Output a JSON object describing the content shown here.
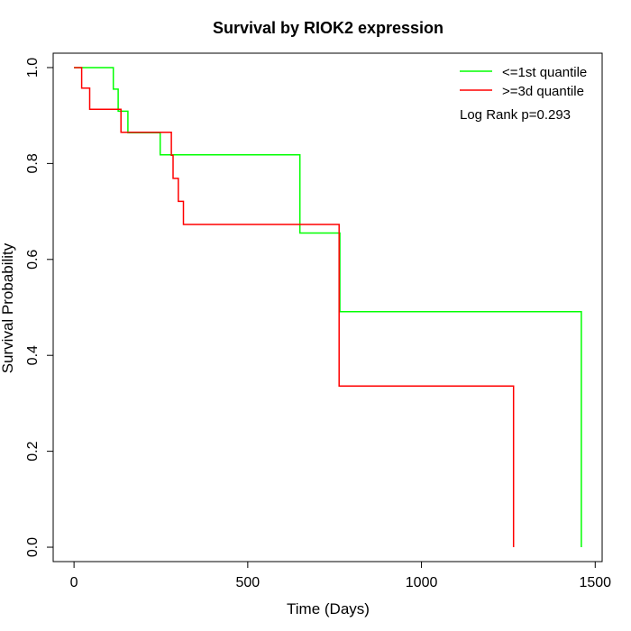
{
  "chart_data": {
    "type": "line",
    "title": "Survival by RIOK2 expression",
    "xlabel": "Time (Days)",
    "ylabel": "Survival Probability",
    "xlim": [
      -60,
      1520
    ],
    "ylim": [
      -0.03,
      1.03
    ],
    "x_ticks": [
      0,
      500,
      1000,
      1500
    ],
    "y_ticks": [
      0.0,
      0.2,
      0.4,
      0.6,
      0.8,
      1.0
    ],
    "x_tick_labels": [
      "0",
      "500",
      "1000",
      "1500"
    ],
    "y_tick_labels": [
      "0.0",
      "0.2",
      "0.4",
      "0.6",
      "0.8",
      "1.0"
    ],
    "grid": false,
    "legend_position": "top-right",
    "annotation": "Log Rank p=0.293",
    "series": [
      {
        "name": "<=1st quantile",
        "color": "#00ff00",
        "step_points": [
          [
            0,
            1.0
          ],
          [
            113,
            1.0
          ],
          [
            113,
            0.955
          ],
          [
            127,
            0.955
          ],
          [
            127,
            0.909
          ],
          [
            155,
            0.909
          ],
          [
            155,
            0.864
          ],
          [
            248,
            0.864
          ],
          [
            248,
            0.818
          ],
          [
            650,
            0.818
          ],
          [
            650,
            0.655
          ],
          [
            765,
            0.655
          ],
          [
            765,
            0.491
          ],
          [
            1460,
            0.491
          ],
          [
            1460,
            0.0
          ]
        ]
      },
      {
        "name": ">=3d quantile",
        "color": "#ff0000",
        "step_points": [
          [
            0,
            1.0
          ],
          [
            22,
            1.0
          ],
          [
            22,
            0.957
          ],
          [
            45,
            0.957
          ],
          [
            45,
            0.913
          ],
          [
            135,
            0.913
          ],
          [
            135,
            0.865
          ],
          [
            280,
            0.865
          ],
          [
            280,
            0.817
          ],
          [
            285,
            0.817
          ],
          [
            285,
            0.769
          ],
          [
            300,
            0.769
          ],
          [
            300,
            0.721
          ],
          [
            315,
            0.721
          ],
          [
            315,
            0.673
          ],
          [
            763,
            0.673
          ],
          [
            763,
            0.336
          ],
          [
            1265,
            0.336
          ],
          [
            1265,
            0.0
          ]
        ]
      }
    ]
  }
}
